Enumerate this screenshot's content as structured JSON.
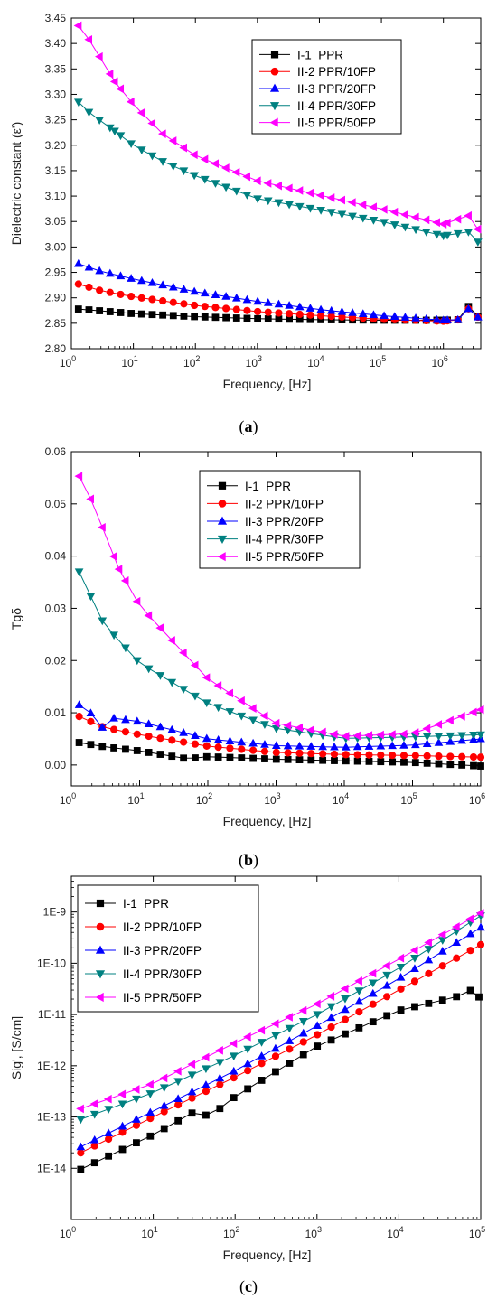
{
  "chart_data": [
    {
      "type": "line",
      "panel_label": "(a)",
      "xlabel": "Frequency, [Hz]",
      "ylabel": "Dielectric constant (ε')",
      "xscale": "log",
      "xlim": [
        1,
        4000000
      ],
      "ylim": [
        2.8,
        3.45
      ],
      "x_ticks": [
        {
          "base": "10",
          "exp": "0"
        },
        {
          "base": "10",
          "exp": "1"
        },
        {
          "base": "10",
          "exp": "2"
        },
        {
          "base": "10",
          "exp": "3"
        },
        {
          "base": "10",
          "exp": "4"
        },
        {
          "base": "10",
          "exp": "5"
        },
        {
          "base": "10",
          "exp": "6"
        }
      ],
      "y_ticks": [
        "2.80",
        "2.85",
        "2.90",
        "2.95",
        "3.00",
        "3.05",
        "3.10",
        "3.15",
        "3.20",
        "3.25",
        "3.30",
        "3.35",
        "3.40",
        "3.45"
      ],
      "legend_position": "top-right",
      "series": [
        {
          "name": "I-1  PPR",
          "color": "#000000",
          "marker": "square",
          "points": [
            [
              1.3,
              2.878
            ],
            [
              10.0,
              2.869
            ],
            [
              100.0,
              2.863
            ],
            [
              1000.0,
              2.859
            ],
            [
              10000.0,
              2.857
            ],
            [
              100000.0,
              2.856
            ],
            [
              1000000.0,
              2.856
            ],
            [
              1800000.0,
              2.857
            ],
            [
              2600000.0,
              2.885
            ],
            [
              3600000.0,
              2.864
            ]
          ]
        },
        {
          "name": "II-2 PPR/10FP",
          "color": "#ff0000",
          "marker": "circle",
          "points": [
            [
              1.3,
              2.927
            ],
            [
              3,
              2.914
            ],
            [
              10.0,
              2.902
            ],
            [
              100.0,
              2.885
            ],
            [
              1000.0,
              2.873
            ],
            [
              10000.0,
              2.865
            ],
            [
              100000.0,
              2.858
            ],
            [
              1000000.0,
              2.854
            ],
            [
              1800000.0,
              2.857
            ],
            [
              2600000.0,
              2.88
            ],
            [
              3600000.0,
              2.862
            ]
          ]
        },
        {
          "name": "II-3 PPR/20FP",
          "color": "#0000ff",
          "marker": "triangle-up",
          "points": [
            [
              1.3,
              2.967
            ],
            [
              3,
              2.952
            ],
            [
              10.0,
              2.937
            ],
            [
              100.0,
              2.912
            ],
            [
              1000.0,
              2.893
            ],
            [
              10000.0,
              2.877
            ],
            [
              100000.0,
              2.865
            ],
            [
              1000000.0,
              2.856
            ],
            [
              1800000.0,
              2.857
            ],
            [
              2600000.0,
              2.88
            ],
            [
              3600000.0,
              2.862
            ]
          ]
        },
        {
          "name": "II-4 PPR/30FP",
          "color": "#008080",
          "marker": "triangle-down",
          "points": [
            [
              1.3,
              3.285
            ],
            [
              2,
              3.263
            ],
            [
              5,
              3.228
            ],
            [
              10.0,
              3.2
            ],
            [
              30.0,
              3.168
            ],
            [
              100.0,
              3.14
            ],
            [
              1000.0,
              3.095
            ],
            [
              10000.0,
              3.073
            ],
            [
              100000.0,
              3.05
            ],
            [
              1000000.0,
              3.022
            ],
            [
              2600000.0,
              3.03
            ],
            [
              3600000.0,
              3.01
            ]
          ]
        },
        {
          "name": "II-5 PPR/50FP",
          "color": "#ff00ff",
          "marker": "triangle-left",
          "points": [
            [
              1.3,
              3.435
            ],
            [
              2,
              3.405
            ],
            [
              5,
              3.325
            ],
            [
              10.0,
              3.28
            ],
            [
              30.0,
              3.222
            ],
            [
              100.0,
              3.18
            ],
            [
              1000.0,
              3.13
            ],
            [
              10000.0,
              3.102
            ],
            [
              100000.0,
              3.075
            ],
            [
              1000000.0,
              3.045
            ],
            [
              2600000.0,
              3.062
            ],
            [
              3600000.0,
              3.035
            ]
          ]
        }
      ]
    },
    {
      "type": "line",
      "panel_label": "(b)",
      "xlabel": "Frequency, [Hz]",
      "ylabel": "Tgδ",
      "xscale": "log",
      "xlim": [
        1,
        1000000
      ],
      "ylim": [
        -0.004,
        0.06
      ],
      "x_ticks": [
        {
          "base": "10",
          "exp": "0"
        },
        {
          "base": "10",
          "exp": "1"
        },
        {
          "base": "10",
          "exp": "2"
        },
        {
          "base": "10",
          "exp": "3"
        },
        {
          "base": "10",
          "exp": "4"
        },
        {
          "base": "10",
          "exp": "5"
        },
        {
          "base": "10",
          "exp": "6"
        }
      ],
      "y_ticks": [
        "0.00",
        "0.01",
        "0.02",
        "0.03",
        "0.04",
        "0.05",
        "0.06"
      ],
      "legend_position": "top-right",
      "series": [
        {
          "name": "I-1  PPR",
          "color": "#000000",
          "marker": "square",
          "points": [
            [
              1.3,
              0.0043
            ],
            [
              3,
              0.0035
            ],
            [
              10.0,
              0.0027
            ],
            [
              50.0,
              0.0012
            ],
            [
              100.0,
              0.0016
            ],
            [
              1000.0,
              0.0011
            ],
            [
              10000.0,
              0.0008
            ],
            [
              100000.0,
              0.0005
            ],
            [
              1000000.0,
              -0.0002
            ]
          ]
        },
        {
          "name": "II-2 PPR/10FP",
          "color": "#ff0000",
          "marker": "circle",
          "points": [
            [
              1.3,
              0.0093
            ],
            [
              3,
              0.0072
            ],
            [
              10.0,
              0.0058
            ],
            [
              100.0,
              0.0036
            ],
            [
              1000.0,
              0.0024
            ],
            [
              10000.0,
              0.002
            ],
            [
              100000.0,
              0.0018
            ],
            [
              1000000.0,
              0.0015
            ]
          ]
        },
        {
          "name": "II-3 PPR/20FP",
          "color": "#0000ff",
          "marker": "triangle-up",
          "points": [
            [
              1.3,
              0.0115
            ],
            [
              1.8,
              0.0108
            ],
            [
              2.5,
              0.0065
            ],
            [
              4,
              0.009
            ],
            [
              10.0,
              0.0083
            ],
            [
              100.0,
              0.005
            ],
            [
              1000.0,
              0.0037
            ],
            [
              10000.0,
              0.0034
            ],
            [
              100000.0,
              0.0038
            ],
            [
              1000000.0,
              0.005
            ]
          ]
        },
        {
          "name": "II-4 PPR/30FP",
          "color": "#008080",
          "marker": "triangle-down",
          "points": [
            [
              1.3,
              0.037
            ],
            [
              3,
              0.027
            ],
            [
              10.0,
              0.0195
            ],
            [
              100.0,
              0.0118
            ],
            [
              1000.0,
              0.007
            ],
            [
              10000.0,
              0.0051
            ],
            [
              100000.0,
              0.0054
            ],
            [
              1000000.0,
              0.0058
            ]
          ]
        },
        {
          "name": "II-5 PPR/50FP",
          "color": "#ff00ff",
          "marker": "triangle-left",
          "points": [
            [
              1.3,
              0.0553
            ],
            [
              2,
              0.0505
            ],
            [
              5,
              0.0375
            ],
            [
              10.0,
              0.0305
            ],
            [
              100.0,
              0.0165
            ],
            [
              1000.0,
              0.008
            ],
            [
              10000.0,
              0.0055
            ],
            [
              100000.0,
              0.006
            ],
            [
              1000000.0,
              0.0106
            ]
          ]
        }
      ]
    },
    {
      "type": "line",
      "panel_label": "(c)",
      "xlabel": "Frequency, [Hz]",
      "ylabel": "Sig', [S/cm]",
      "xscale": "log",
      "yscale": "log",
      "xlim": [
        1,
        100000
      ],
      "ylim": [
        1e-15,
        5e-09
      ],
      "x_ticks": [
        {
          "base": "10",
          "exp": "0"
        },
        {
          "base": "10",
          "exp": "1"
        },
        {
          "base": "10",
          "exp": "2"
        },
        {
          "base": "10",
          "exp": "3"
        },
        {
          "base": "10",
          "exp": "4"
        },
        {
          "base": "10",
          "exp": "5"
        }
      ],
      "y_ticks": [
        "1E-14",
        "1E-13",
        "1E-12",
        "1E-11",
        "1E-10",
        "1E-9"
      ],
      "legend_position": "top-left",
      "series": [
        {
          "name": "I-1  PPR",
          "color": "#000000",
          "marker": "square",
          "points": [
            [
              1.3,
              9.5e-15
            ],
            [
              3,
              1.8e-14
            ],
            [
              10.0,
              4.5e-14
            ],
            [
              30.0,
              1.2e-13
            ],
            [
              50.0,
              1.05e-13
            ],
            [
              100.0,
              2.5e-13
            ],
            [
              1000.0,
              2.4e-12
            ],
            [
              10000.0,
              1.2e-11
            ],
            [
              50000.0,
              2.2e-11
            ],
            [
              70000.0,
              3.2e-11
            ],
            [
              95000.0,
              2.2e-11
            ]
          ]
        },
        {
          "name": "II-2 PPR/10FP",
          "color": "#ff0000",
          "marker": "circle",
          "points": [
            [
              1.3,
              2e-14
            ],
            [
              10.0,
              1e-13
            ],
            [
              100.0,
              6e-13
            ],
            [
              1000.0,
              4e-12
            ],
            [
              10000.0,
              3e-11
            ],
            [
              100000.0,
              2.3e-10
            ]
          ]
        },
        {
          "name": "II-3 PPR/20FP",
          "color": "#0000ff",
          "marker": "triangle-up",
          "points": [
            [
              1.3,
              2.6e-14
            ],
            [
              10.0,
              1.3e-13
            ],
            [
              100.0,
              8e-13
            ],
            [
              1000.0,
              6e-12
            ],
            [
              10000.0,
              5e-11
            ],
            [
              100000.0,
              5e-10
            ]
          ]
        },
        {
          "name": "II-4 PPR/30FP",
          "color": "#008080",
          "marker": "triangle-down",
          "points": [
            [
              1.3,
              9e-14
            ],
            [
              10.0,
              3e-13
            ],
            [
              100.0,
              1.6e-12
            ],
            [
              1000.0,
              1e-11
            ],
            [
              10000.0,
              8e-11
            ],
            [
              100000.0,
              8.5e-10
            ]
          ]
        },
        {
          "name": "II-5 PPR/50FP",
          "color": "#ff00ff",
          "marker": "triangle-left",
          "points": [
            [
              1.3,
              1.45e-13
            ],
            [
              10.0,
              4.5e-13
            ],
            [
              100.0,
              2.8e-12
            ],
            [
              1000.0,
              1.6e-11
            ],
            [
              10000.0,
              1.2e-10
            ],
            [
              100000.0,
              9.5e-10
            ]
          ]
        }
      ]
    }
  ]
}
